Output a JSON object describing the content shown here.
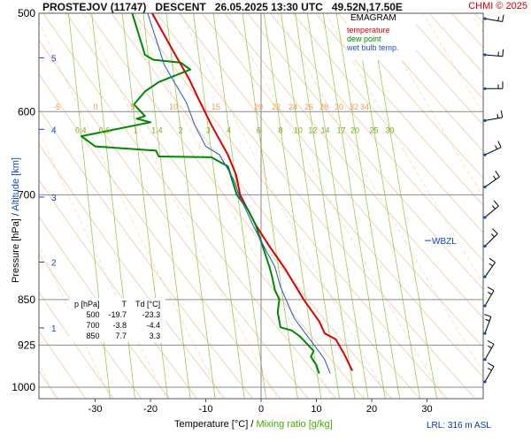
{
  "header": {
    "station": "PROSTEJOV (11747)",
    "mode": "DESCENT",
    "datetime": "26.05.2025 13:30 UTC",
    "coords": "49.52N,17.50E",
    "copyright": "CHMI © 2025"
  },
  "legend": {
    "title": "EMAGRAM",
    "temperature": "temperature",
    "dewpoint": "dew point",
    "wetbulb": "wet bulb temp.",
    "colors": {
      "temperature": "#dd0000",
      "dewpoint": "#008800",
      "wetbulb": "#2255cc"
    }
  },
  "axes": {
    "ylabel_pressure": "Pressure [hPa]",
    "ylabel_sep": " / ",
    "ylabel_altitude": "Altitude [km]",
    "xlabel_temp": "Temperature [°C]",
    "xlabel_sep": " / ",
    "xlabel_mixing": "Mixing ratio [g/kg]"
  },
  "lrl": "LRL: 316 m ASL",
  "wbzl": "WBZL",
  "table": {
    "headers": [
      "p [hPa]",
      "T",
      "Td [°C]"
    ],
    "rows": [
      [
        "500",
        "-19.7",
        "-23.3"
      ],
      [
        "700",
        "-3.8",
        "-4.4"
      ],
      [
        "850",
        "7.7",
        "3.3"
      ]
    ]
  },
  "chart_data": {
    "type": "line",
    "title": "EMAGRAM",
    "xlim": [
      -40,
      40
    ],
    "ylim_hpa": [
      500,
      1000
    ],
    "y_scale": "log",
    "x_ticks": [
      -30,
      -20,
      -10,
      0,
      10,
      20,
      30
    ],
    "p_ticks": [
      500,
      600,
      700,
      850,
      925,
      1000
    ],
    "pressure_gridlines": [
      500,
      600,
      700,
      850,
      925,
      1000
    ],
    "altitude_ticks_km": [
      {
        "label": "1",
        "p": 896
      },
      {
        "label": "2",
        "p": 793
      },
      {
        "label": "3",
        "p": 703
      },
      {
        "label": "4",
        "p": 620
      },
      {
        "label": "5",
        "p": 543
      }
    ],
    "isotherm_labels_600hpa": [
      -5,
      0,
      5,
      10,
      15,
      20,
      22,
      24,
      26,
      28,
      30,
      32,
      34
    ],
    "mixing_ratio_labels_620hpa": [
      0.4,
      0.6,
      1,
      1.4,
      2,
      3,
      4,
      6,
      8,
      10,
      12,
      14,
      17,
      20,
      25,
      30
    ],
    "series": [
      {
        "name": "temperature",
        "points": [
          [
            -19.7,
            500
          ],
          [
            -15.5,
            540
          ],
          [
            -13.0,
            565
          ],
          [
            -11.0,
            590
          ],
          [
            -9.0,
            615
          ],
          [
            -6.0,
            650
          ],
          [
            -4.5,
            675
          ],
          [
            -3.8,
            700
          ],
          [
            -1.0,
            740
          ],
          [
            1.5,
            770
          ],
          [
            4.5,
            805
          ],
          [
            7.7,
            850
          ],
          [
            10.5,
            885
          ],
          [
            11.5,
            905
          ],
          [
            13.5,
            915
          ],
          [
            15.0,
            940
          ],
          [
            16.5,
            970
          ]
        ]
      },
      {
        "name": "dew point",
        "points": [
          [
            -23.3,
            500
          ],
          [
            -21.0,
            540
          ],
          [
            -19.5,
            545
          ],
          [
            -14.5,
            548
          ],
          [
            -12.8,
            555
          ],
          [
            -18.5,
            568
          ],
          [
            -21.0,
            578
          ],
          [
            -23.0,
            592
          ],
          [
            -21.0,
            605
          ],
          [
            -22.5,
            608
          ],
          [
            -20.0,
            612
          ],
          [
            -32.5,
            628
          ],
          [
            -30.0,
            640
          ],
          [
            -19.0,
            645
          ],
          [
            -18.5,
            652
          ],
          [
            -9.0,
            653
          ],
          [
            -6.0,
            664
          ],
          [
            -4.4,
            700
          ],
          [
            -2.5,
            718
          ],
          [
            -1.0,
            740
          ],
          [
            0.5,
            775
          ],
          [
            1.5,
            800
          ],
          [
            2.0,
            815
          ],
          [
            2.5,
            835
          ],
          [
            3.3,
            850
          ],
          [
            3.0,
            870
          ],
          [
            3.5,
            895
          ],
          [
            5.5,
            900
          ],
          [
            7.0,
            910
          ],
          [
            9.5,
            935
          ],
          [
            9.0,
            945
          ],
          [
            10.0,
            960
          ],
          [
            10.5,
            975
          ]
        ]
      },
      {
        "name": "wet bulb temp.",
        "points": [
          [
            -20.5,
            500
          ],
          [
            -17.5,
            550
          ],
          [
            -16.0,
            565
          ],
          [
            -13.5,
            590
          ],
          [
            -12.0,
            615
          ],
          [
            -10.0,
            640
          ],
          [
            -7.5,
            650
          ],
          [
            -5.0,
            680
          ],
          [
            -4.0,
            700
          ],
          [
            -1.5,
            740
          ],
          [
            0.8,
            775
          ],
          [
            2.5,
            800
          ],
          [
            3.5,
            830
          ],
          [
            4.5,
            850
          ],
          [
            6.0,
            880
          ],
          [
            8.0,
            905
          ],
          [
            10.0,
            930
          ],
          [
            11.5,
            950
          ],
          [
            12.5,
            975
          ]
        ]
      }
    ],
    "wind_barbs_p": [
      505,
      540,
      575,
      610,
      650,
      690,
      730,
      770,
      815,
      860,
      905,
      950,
      990
    ]
  }
}
